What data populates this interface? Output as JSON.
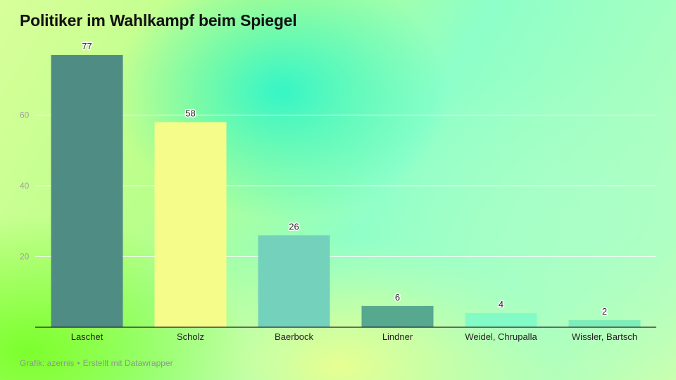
{
  "title": "Politiker im Wahlkampf beim Spiegel",
  "footer": {
    "source": "Grafik: azernis",
    "separator": "•",
    "credit": "Erstellt mit Datawrapper"
  },
  "chart_data": {
    "type": "bar",
    "categories": [
      "Laschet",
      "Scholz",
      "Baerbock",
      "Lindner",
      "Weidel, Chrupalla",
      "Wissler, Bartsch"
    ],
    "values": [
      77,
      58,
      26,
      6,
      4,
      2
    ],
    "colors": [
      "#4e8c84",
      "#f6fc8a",
      "#74d2bc",
      "#56a88e",
      "#83fbc6",
      "#7eedb8"
    ],
    "title": "Politiker im Wahlkampf beim Spiegel",
    "xlabel": "",
    "ylabel": "",
    "ylim": [
      0,
      80
    ],
    "yticks": [
      20,
      40,
      60
    ],
    "grid": true,
    "data_labels": true
  }
}
